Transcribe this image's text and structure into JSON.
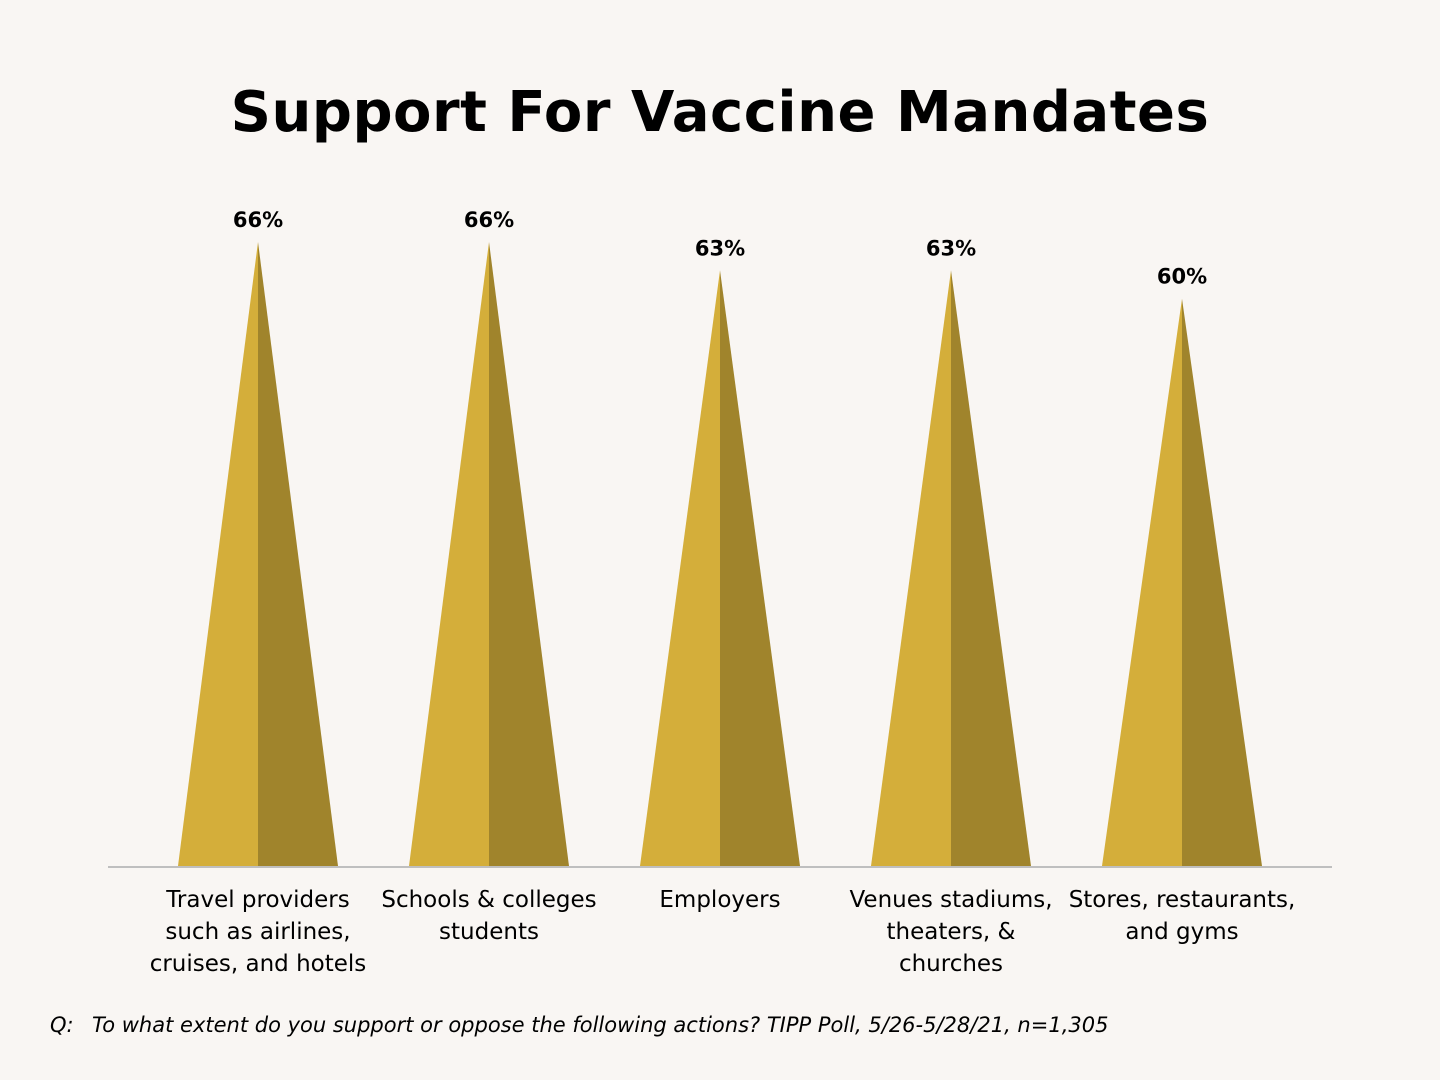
{
  "chart_data": {
    "type": "bar",
    "title": "Support For Vaccine Mandates",
    "categories": [
      "Travel providers such as airlines, cruises, and hotels",
      "Schools & colleges students",
      "Employers",
      "Venues stadiums, theaters, & churches",
      "Stores, restaurants, and gyms"
    ],
    "category_display": [
      "Travel providers\nsuch as airlines,\ncruises, and hotels",
      "Schools & colleges\nstudents",
      "Employers",
      "Venues stadiums,\ntheaters, &\nchurches",
      "Stores, restaurants,\nand gyms"
    ],
    "values": [
      66,
      66,
      63,
      63,
      60
    ],
    "value_labels": [
      "66%",
      "66%",
      "63%",
      "63%",
      "60%"
    ],
    "unit": "%",
    "bar_shape": "pyramid",
    "colors": {
      "light_face": "#d4ae3a",
      "dark_face": "#a0842c",
      "axis": "#bfbfbf"
    },
    "grid": false,
    "legend": "none"
  },
  "footnote": {
    "q_label": "Q:",
    "text": "To what extent do you support or oppose the following actions? TIPP Poll, 5/26-5/28/21, n=1,305"
  }
}
